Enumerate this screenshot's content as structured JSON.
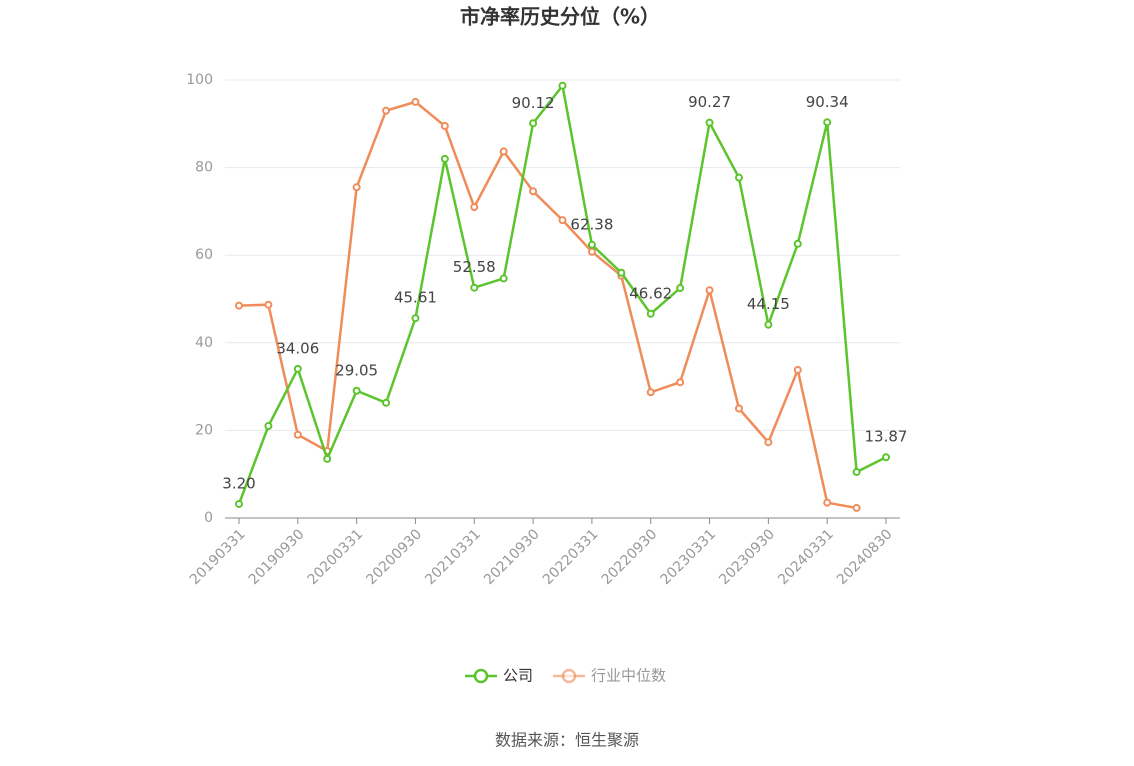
{
  "chart_data": {
    "type": "line",
    "title": "市净率历史分位（%）",
    "categories": [
      "20190331",
      null,
      "20190930",
      null,
      "20200331",
      null,
      "20200930",
      null,
      "20210331",
      null,
      "20210930",
      null,
      "20220331",
      null,
      "20220930",
      null,
      "20230331",
      null,
      "20230930",
      null,
      "20240331",
      null,
      "20240830"
    ],
    "series": [
      {
        "name": "公司",
        "color": "#5cc42c",
        "values": [
          3.2,
          21,
          34.06,
          13.5,
          29.05,
          26.3,
          45.61,
          82,
          52.58,
          54.7,
          90.12,
          98.7,
          62.38,
          56,
          46.62,
          52.5,
          90.27,
          77.7,
          44.15,
          62.6,
          90.34,
          10.5,
          13.87
        ],
        "value_labels": [
          "3.20",
          null,
          "34.06",
          null,
          "29.05",
          null,
          "45.61",
          null,
          "52.58",
          null,
          "90.12",
          null,
          "62.38",
          null,
          "46.62",
          null,
          "90.27",
          null,
          "44.15",
          null,
          "90.34",
          null,
          "13.87"
        ]
      },
      {
        "name": "行业中位数",
        "color": "#f08c5a",
        "values": [
          48.5,
          48.7,
          19,
          15.3,
          75.5,
          93,
          95,
          89.5,
          71,
          83.7,
          74.6,
          68,
          60.8,
          55.3,
          28.7,
          31,
          52,
          25,
          17.3,
          33.8,
          3.5,
          2.3,
          null
        ]
      }
    ],
    "ylim": [
      0,
      100
    ],
    "yticks": [
      0,
      20,
      40,
      60,
      80,
      100
    ],
    "grid": true,
    "source": "数据来源：恒生聚源"
  }
}
